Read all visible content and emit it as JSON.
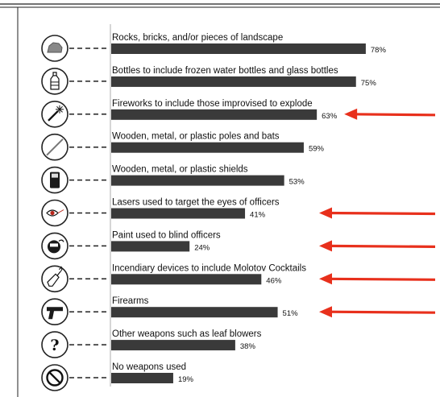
{
  "chart_data": {
    "type": "bar",
    "orientation": "horizontal",
    "categories": [
      "Rocks, bricks, and/or pieces of landscape",
      "Bottles to include frozen water bottles and glass bottles",
      "Fireworks to include those improvised to explode",
      "Wooden, metal, or plastic poles and bats",
      "Wooden, metal, or plastic shields",
      "Lasers used to target the eyes of officers",
      "Paint used to blind officers",
      "Incendiary devices to include Molotov Cocktails",
      "Firearms",
      "Other weapons such as leaf blowers",
      "No weapons used"
    ],
    "values": [
      78,
      75,
      63,
      59,
      53,
      41,
      24,
      46,
      51,
      38,
      19
    ],
    "value_labels": [
      "78%",
      "75%",
      "63%",
      "59%",
      "53%",
      "41%",
      "24%",
      "46%",
      "51%",
      "38%",
      "19%"
    ],
    "icons": [
      "rock-icon",
      "bottle-icon",
      "firework-icon",
      "pole-icon",
      "shield-icon",
      "laser-eye-icon",
      "paint-mask-icon",
      "molotov-icon",
      "firearm-icon",
      "question-mark-icon",
      "no-weapon-icon"
    ],
    "question_glyph": "?",
    "highlighted": [
      false,
      false,
      true,
      false,
      false,
      true,
      true,
      true,
      true,
      false,
      false
    ],
    "bar_color": "#3a3a3a",
    "arrow_color": "#e8301c",
    "xlim": [
      0,
      100
    ],
    "grid": false,
    "legend": "none"
  }
}
